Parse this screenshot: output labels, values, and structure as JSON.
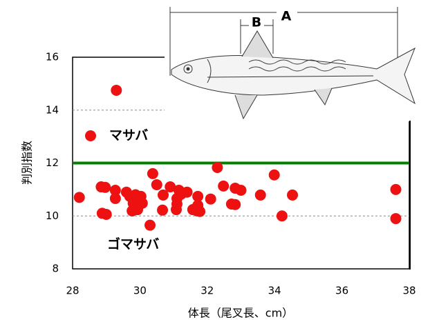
{
  "chart_data": {
    "type": "scatter",
    "xlabel": "体長（尾叉長、cm）",
    "ylabel": "判別指数",
    "xlim": [
      28,
      38
    ],
    "xticks": [
      28,
      30,
      32,
      34,
      36,
      38
    ],
    "ylim": [
      8,
      16
    ],
    "yticks": [
      8,
      10,
      12,
      14,
      16
    ],
    "grid": true,
    "threshold": {
      "value": 12,
      "color": "#008000"
    },
    "series": [
      {
        "name": "マサバ",
        "color": "#ee1111",
        "x": [
          28.2,
          29.3,
          28.85,
          28.97,
          28.88,
          29.0,
          29.27,
          29.27,
          29.6,
          29.7,
          29.8,
          29.87,
          29.77,
          29.95,
          30.03,
          30.07,
          29.93,
          30.38,
          30.5,
          30.3,
          30.69,
          30.67,
          30.9,
          31.08,
          31.1,
          31.1,
          31.16,
          31.22,
          31.4,
          31.57,
          31.72,
          31.72,
          31.7,
          31.78,
          32.1,
          32.3,
          32.48,
          32.72,
          32.83,
          32.83,
          33.0,
          33.58,
          33.99,
          34.22,
          34.53,
          37.6,
          37.6
        ],
        "values": [
          10.7,
          14.75,
          11.1,
          11.08,
          10.1,
          10.06,
          10.97,
          10.66,
          10.9,
          10.74,
          10.48,
          10.8,
          10.19,
          10.64,
          10.74,
          10.48,
          10.24,
          11.6,
          11.18,
          9.65,
          10.79,
          10.22,
          11.1,
          10.24,
          10.66,
          10.45,
          10.97,
          10.82,
          10.9,
          10.24,
          10.74,
          10.4,
          10.19,
          10.17,
          10.64,
          11.83,
          11.13,
          10.45,
          10.43,
          11.05,
          10.97,
          10.79,
          11.55,
          10.0,
          10.79,
          11.0,
          9.9
        ]
      }
    ],
    "annotations": [
      "ゴマサバ"
    ],
    "fish_labels": [
      "A",
      "B"
    ]
  }
}
